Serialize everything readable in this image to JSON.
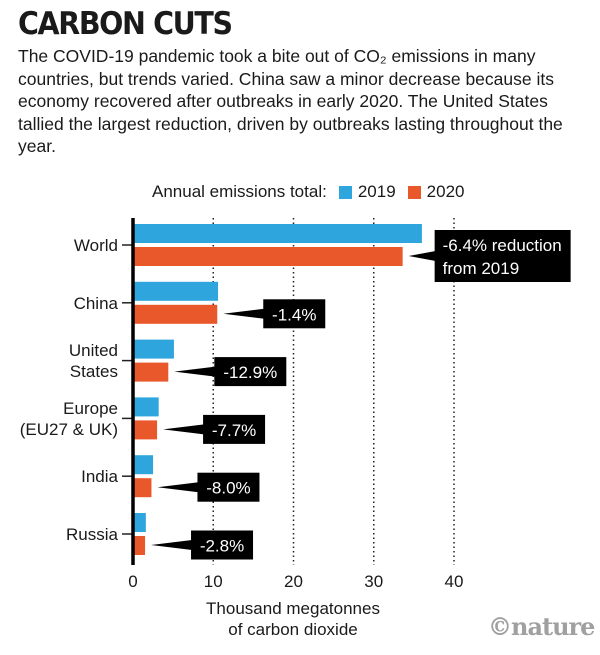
{
  "title": "CARBON CUTS",
  "subtitle": "The COVID-19 pandemic took a bite out of CO₂ emissions in many countries, but trends varied. China saw a minor decrease because its economy recovered after outbreaks in early 2020. The United States tallied the largest reduction, driven by outbreaks lasting throughout the year.",
  "legend_label": "Annual emissions total:",
  "source": "©nature",
  "colors": {
    "2019": "#2ea6dd",
    "2020": "#e8582a"
  },
  "chart_data": {
    "type": "bar",
    "orientation": "horizontal",
    "categories": [
      "World",
      "China",
      "United States",
      "Europe (EU27 & UK)",
      "India",
      "Russia"
    ],
    "category_lines": [
      [
        "World"
      ],
      [
        "China"
      ],
      [
        "United",
        "States"
      ],
      [
        "Europe",
        "(EU27 & UK)"
      ],
      [
        "India"
      ],
      [
        "Russia"
      ]
    ],
    "series": [
      {
        "name": "2019",
        "values": [
          36.0,
          10.6,
          5.1,
          3.2,
          2.5,
          1.6
        ]
      },
      {
        "name": "2020",
        "values": [
          33.6,
          10.5,
          4.4,
          3.0,
          2.3,
          1.5
        ]
      }
    ],
    "annotations": [
      [
        "-6.4% reduction",
        "from 2019"
      ],
      [
        "-1.4%"
      ],
      [
        "-12.9%"
      ],
      [
        "-7.7%"
      ],
      [
        "-8.0%"
      ],
      [
        "-2.8%"
      ]
    ],
    "xlabel": [
      "Thousand megatonnes",
      "of carbon dioxide"
    ],
    "xlim": [
      0,
      40
    ],
    "xticks": [
      0,
      10,
      20,
      30,
      40
    ],
    "grid": "vertical dotted",
    "legend": "top"
  }
}
